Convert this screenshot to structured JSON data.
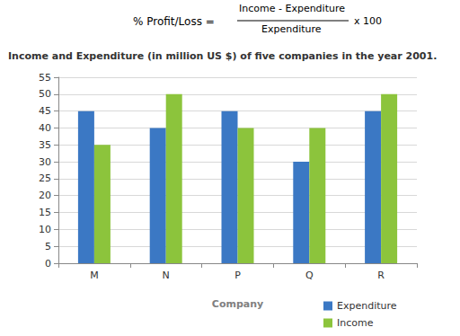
{
  "chart_data": {
    "type": "bar",
    "title": "Income and Expenditure (in million US $) of five companies in the year 2001.",
    "formula": {
      "left": "% Profit/Loss =",
      "numerator": "Income - Expenditure",
      "denominator": "Expenditure",
      "right": "x 100"
    },
    "x_label": "Company",
    "categories": [
      "M",
      "N",
      "P",
      "Q",
      "R"
    ],
    "series": [
      {
        "name": "Expenditure",
        "color": "#3b78c4",
        "values": [
          45,
          40,
          45,
          30,
          45
        ]
      },
      {
        "name": "Income",
        "color": "#8cc43c",
        "values": [
          35,
          50,
          40,
          40,
          50
        ]
      }
    ],
    "ylim": [
      0,
      55
    ],
    "yticks": [
      0,
      5,
      10,
      15,
      20,
      25,
      30,
      35,
      40,
      45,
      50,
      55
    ],
    "grid": true,
    "legend": "lower right"
  }
}
